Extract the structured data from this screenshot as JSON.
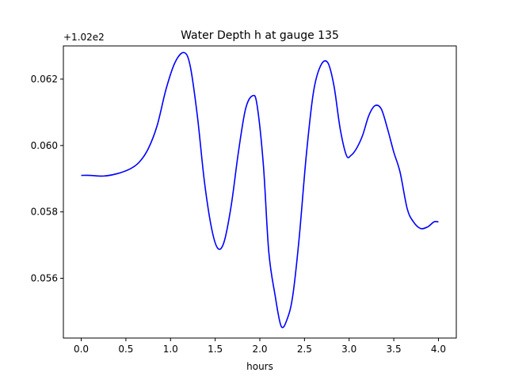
{
  "chart_data": {
    "type": "line",
    "title": "Water Depth h at gauge 135",
    "xlabel": "hours",
    "ylabel": "",
    "offset_label": "+1.02e2",
    "xlim": [
      -0.2,
      4.2
    ],
    "ylim": [
      0.0542,
      0.063
    ],
    "x_ticks": [
      0.0,
      0.5,
      1.0,
      1.5,
      2.0,
      2.5,
      3.0,
      3.5,
      4.0
    ],
    "x_tick_labels": [
      "0.0",
      "0.5",
      "1.0",
      "1.5",
      "2.0",
      "2.5",
      "3.0",
      "3.5",
      "4.0"
    ],
    "y_ticks": [
      0.056,
      0.058,
      0.06,
      0.062
    ],
    "y_tick_labels": [
      "0.056",
      "0.058",
      "0.060",
      "0.062"
    ],
    "grid": false,
    "series": [
      {
        "color": "#0000ff",
        "x": [
          0.0,
          0.1,
          0.25,
          0.4,
          0.55,
          0.65,
          0.75,
          0.85,
          0.95,
          1.05,
          1.15,
          1.22,
          1.3,
          1.38,
          1.46,
          1.53,
          1.6,
          1.68,
          1.76,
          1.84,
          1.92,
          1.97,
          2.04,
          2.1,
          2.17,
          2.24,
          2.31,
          2.37,
          2.44,
          2.52,
          2.6,
          2.68,
          2.76,
          2.83,
          2.9,
          2.97,
          3.02,
          3.08,
          3.15,
          3.22,
          3.29,
          3.36,
          3.43,
          3.5,
          3.57,
          3.65,
          3.72,
          3.8,
          3.88,
          3.95,
          4.0
        ],
        "y": [
          0.0591,
          0.0591,
          0.05908,
          0.05915,
          0.0593,
          0.0595,
          0.0599,
          0.0606,
          0.0617,
          0.0625,
          0.0628,
          0.0624,
          0.0609,
          0.0589,
          0.0575,
          0.0569,
          0.0571,
          0.0582,
          0.0598,
          0.0611,
          0.0615,
          0.0612,
          0.0594,
          0.0568,
          0.0555,
          0.05455,
          0.0548,
          0.0555,
          0.0572,
          0.0597,
          0.0616,
          0.0624,
          0.0625,
          0.0618,
          0.0605,
          0.0597,
          0.0597,
          0.0599,
          0.0603,
          0.0609,
          0.0612,
          0.0611,
          0.0605,
          0.0598,
          0.0592,
          0.0581,
          0.0577,
          0.0575,
          0.05755,
          0.0577,
          0.0577
        ]
      }
    ]
  }
}
